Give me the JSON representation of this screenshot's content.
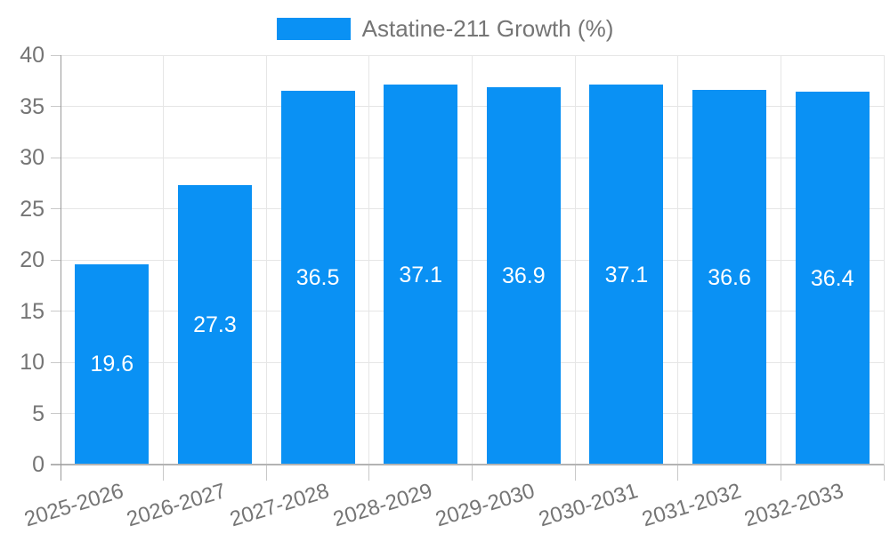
{
  "chart_data": {
    "type": "bar",
    "legend": "Astatine-211 Growth (%)",
    "legend_position": "top-center",
    "categories": [
      "2025-2026",
      "2026-2027",
      "2027-2028",
      "2028-2029",
      "2029-2030",
      "2030-2031",
      "2031-2032",
      "2032-2033"
    ],
    "values": [
      19.6,
      27.3,
      36.5,
      37.1,
      36.9,
      37.1,
      36.6,
      36.4
    ],
    "value_labels": [
      "19.6",
      "27.3",
      "36.5",
      "37.1",
      "36.9",
      "37.1",
      "36.6",
      "36.4"
    ],
    "ylim": [
      0,
      40
    ],
    "yticks": [
      0,
      5,
      10,
      15,
      20,
      25,
      30,
      35,
      40
    ],
    "grid": true,
    "xlabel": "",
    "ylabel": "",
    "colors": {
      "bar": "#0a91f4",
      "grid": "#e6e6e6",
      "axis_y": "#9a9a9a",
      "axis_x": "#b3b3b3",
      "tick": "#c9c9c9",
      "text": "#757575",
      "value_label": "#ffffff",
      "background": "#ffffff"
    }
  }
}
